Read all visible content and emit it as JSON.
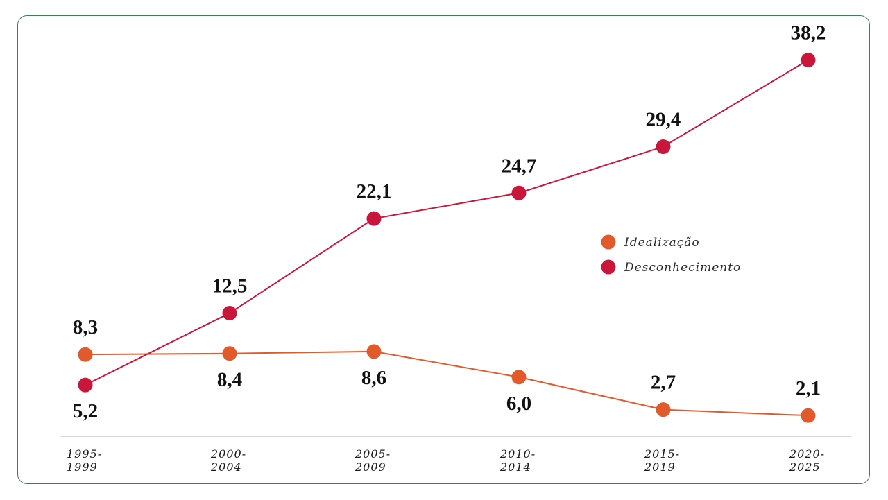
{
  "chart_data": {
    "type": "line",
    "categories": [
      "1995-\n1999",
      "2000-\n2004",
      "2005-\n2009",
      "2010-\n2014",
      "2015-\n2019",
      "2020-\n2025"
    ],
    "series": [
      {
        "name": "Idealização",
        "color": "#e05a2b",
        "values": [
          8.3,
          8.4,
          8.6,
          6.0,
          2.7,
          2.1
        ],
        "labels": [
          "8,3",
          "8,4",
          "8,6",
          "6,0",
          "2,7",
          "2,1"
        ]
      },
      {
        "name": "Desconhecimento",
        "color": "#c8173a",
        "values": [
          5.2,
          12.5,
          22.1,
          24.7,
          29.4,
          38.2
        ],
        "labels": [
          "5,2",
          "12,5",
          "22,1",
          "24,7",
          "29,4",
          "38,2"
        ]
      }
    ],
    "legend_position": "right",
    "grid": false
  }
}
